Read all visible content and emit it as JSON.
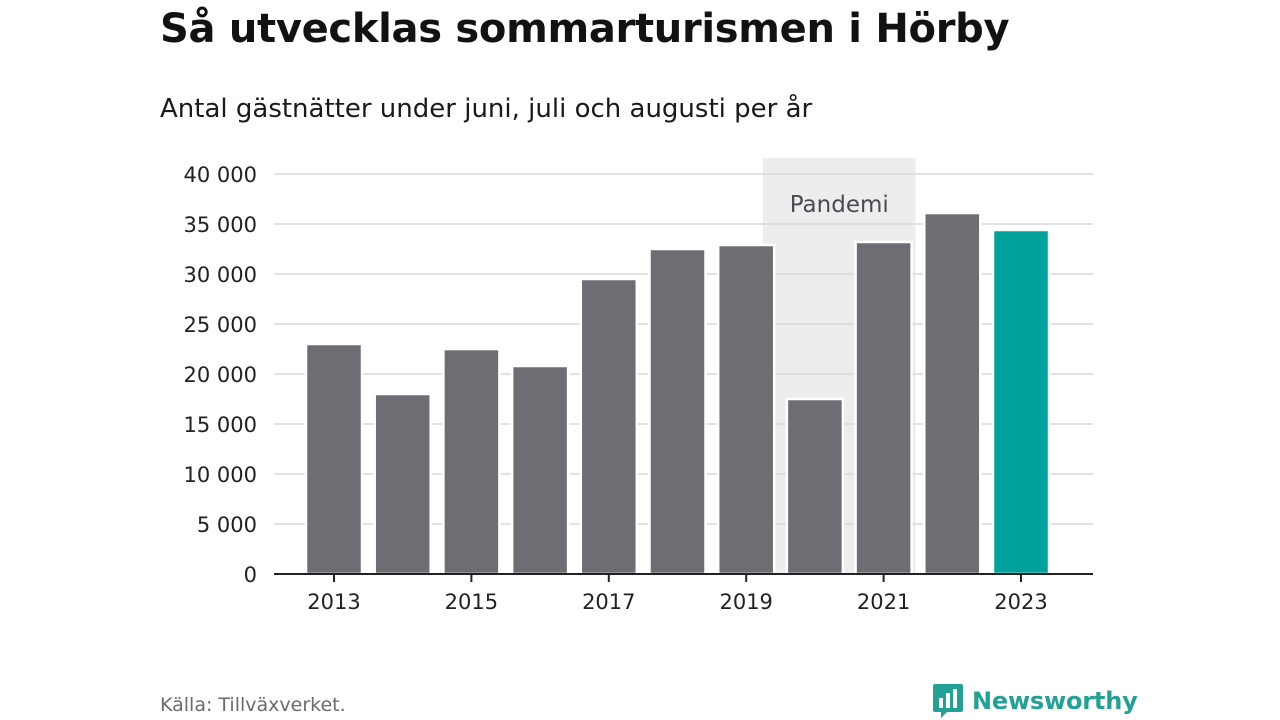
{
  "header": {
    "title": "Så utvecklas sommarturismen i Hörby",
    "subtitle": "Antal gästnätter under juni, juli och augusti per år"
  },
  "footer": {
    "source": "Källa: Tillväxverket.",
    "brand": "Newsworthy",
    "brand_color": "#24a197"
  },
  "chart_data": {
    "type": "bar",
    "categories": [
      "2013",
      "2014",
      "2015",
      "2016",
      "2017",
      "2018",
      "2019",
      "2020",
      "2021",
      "2022",
      "2023"
    ],
    "values": [
      23000,
      18000,
      22500,
      20800,
      29500,
      32500,
      32900,
      17500,
      33200,
      36100,
      34400
    ],
    "ylim": [
      0,
      40000
    ],
    "yticks": [
      0,
      5000,
      10000,
      15000,
      20000,
      25000,
      30000,
      35000,
      40000
    ],
    "ytick_labels": [
      "0",
      "5 000",
      "10 000",
      "15 000",
      "20 000",
      "25 000",
      "30 000",
      "35 000",
      "40 000"
    ],
    "xtick_labels": [
      "2013",
      "2015",
      "2017",
      "2019",
      "2021",
      "2023"
    ],
    "grid": true,
    "annotation": {
      "label": "Pandemi",
      "from": "2020",
      "to": "2021",
      "color": "#ededed"
    },
    "colors": {
      "bar": "#6e6d73",
      "highlight": "#00a19b",
      "highlight_category": "2023",
      "grid": "#d9d9d9",
      "axis": "#222222"
    }
  }
}
